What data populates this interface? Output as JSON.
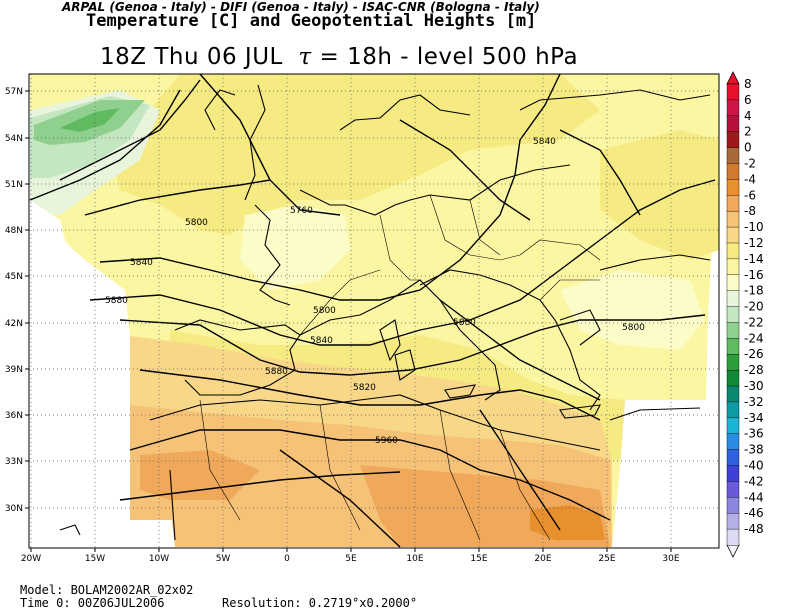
{
  "header": {
    "credits": "ARPAL (Genoa - Italy)  -  DIFI (Genoa - Italy)  -  ISAC-CNR (Bologna - Italy)",
    "subtitle": "Temperature [C] and Geopotential Heights [m]",
    "time_label": "18Z Thu 06 JUL",
    "tau_symbol": "τ",
    "tau_value": " = 18h",
    "sep": "  -  ",
    "level": "level 500 hPa"
  },
  "footer": {
    "model": "Model: BOLAM2002AR_02x02",
    "time0": "Time 0: 00Z06JUL2006",
    "resolution": "Resolution: 0.2719°x0.2000°"
  },
  "map": {
    "lon_labels": [
      "20W",
      "15W",
      "10W",
      "5W",
      "0",
      "5E",
      "10E",
      "15E",
      "20E",
      "25E",
      "30E"
    ],
    "lat_labels": [
      "57N",
      "54N",
      "51N",
      "48N",
      "45N",
      "42N",
      "39N",
      "36N",
      "33N",
      "30N"
    ],
    "contour_labels": [
      "5840",
      "5760",
      "5800",
      "5840",
      "5880",
      "5800",
      "5840",
      "5880",
      "5820",
      "5880",
      "5960",
      "5800"
    ]
  },
  "colorbar": {
    "labels": [
      "8",
      "6",
      "4",
      "2",
      "0",
      "-2",
      "-4",
      "-6",
      "-8",
      "-10",
      "-12",
      "-14",
      "-16",
      "-18",
      "-20",
      "-22",
      "-24",
      "-26",
      "-28",
      "-30",
      "-32",
      "-34",
      "-36",
      "-38",
      "-40",
      "-42",
      "-44",
      "-46",
      "-48"
    ],
    "colors": [
      "#e8102a",
      "#d01448",
      "#b8103a",
      "#9c1a1a",
      "#a86a3a",
      "#d07a30",
      "#e8902e",
      "#f0a85a",
      "#f6c278",
      "#f8d888",
      "#f6ea82",
      "#fbf6a2",
      "#fcfcc8",
      "#e8f5dc",
      "#c4e6c0",
      "#8fd08e",
      "#5fba60",
      "#2e9e3c",
      "#108a36",
      "#0a8870",
      "#0c9ca4",
      "#1ab4d4",
      "#2a8ce0",
      "#3060e0",
      "#4040d8",
      "#6a5ad8",
      "#8c86dc",
      "#b4b0e6",
      "#dcdaf2"
    ]
  }
}
